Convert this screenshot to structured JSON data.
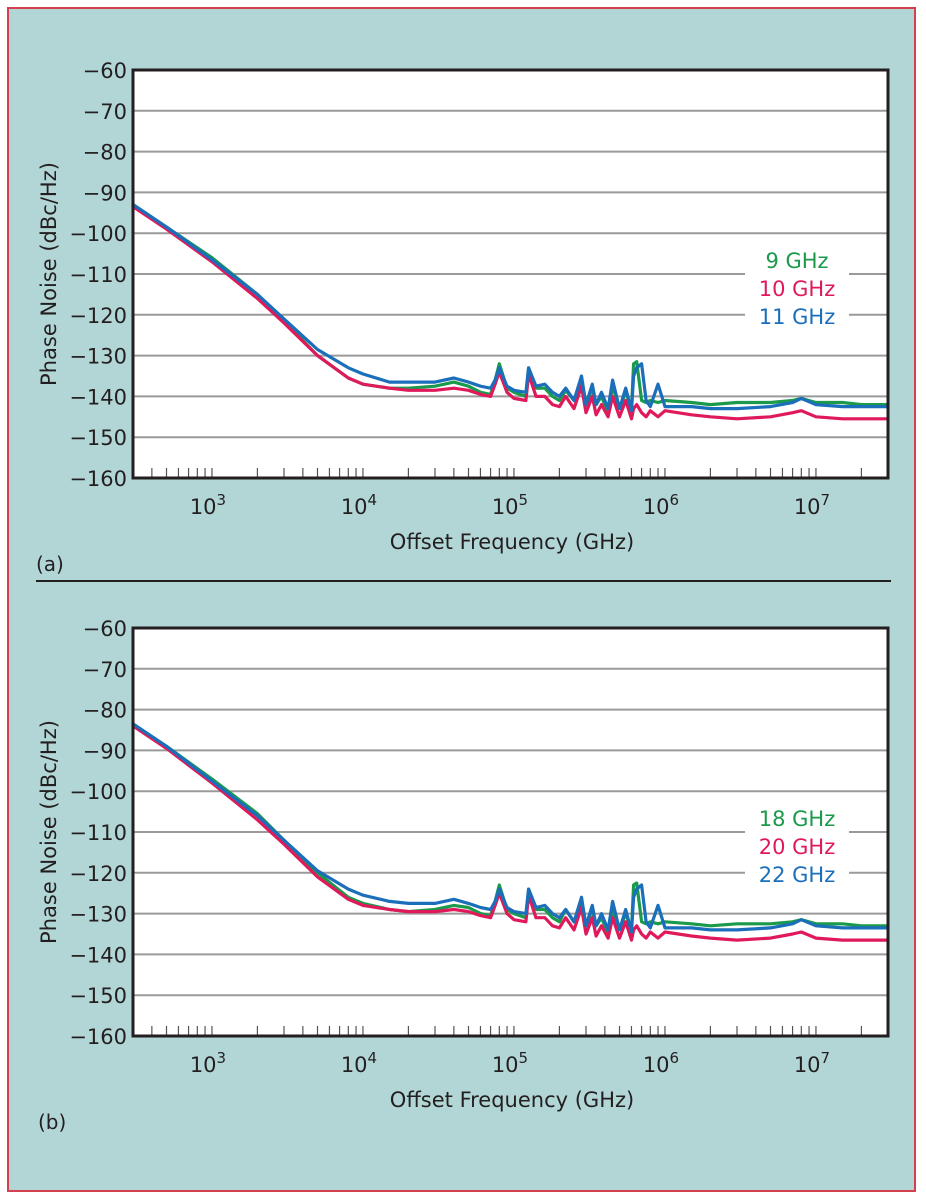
{
  "figure": {
    "colors": {
      "background": "#b2d6d6",
      "frame_border": "#d4404f",
      "plot_bg": "#ffffff",
      "grid": "#9a9a9a",
      "axis": "#231f20",
      "green": "#1a9a4a",
      "red": "#e0195a",
      "blue": "#1b6fba"
    }
  },
  "chart_data": [
    {
      "type": "line",
      "panel_label": "(a)",
      "title": "",
      "xlabel": "Offset Frequency (GHz)",
      "ylabel": "Phase Noise (dBc/Hz)",
      "xscale": "log",
      "xlim": [
        300,
        30000000
      ],
      "ylim": [
        -160,
        -60
      ],
      "yticks": [
        "−60",
        "−70",
        "−80",
        "−90",
        "−100",
        "−110",
        "−120",
        "−130",
        "−140",
        "−150",
        "−160"
      ],
      "ytick_values": [
        -60,
        -70,
        -80,
        -90,
        -100,
        -110,
        -120,
        -130,
        -140,
        -150,
        -160
      ],
      "xticks": [
        {
          "base": "10",
          "exp": "3",
          "value": 1000
        },
        {
          "base": "10",
          "exp": "4",
          "value": 10000
        },
        {
          "base": "10",
          "exp": "5",
          "value": 100000
        },
        {
          "base": "10",
          "exp": "6",
          "value": 1000000
        },
        {
          "base": "10",
          "exp": "7",
          "value": 10000000
        }
      ],
      "grid": true,
      "legend_position": "right",
      "series": [
        {
          "name": "9 GHz",
          "color": "green",
          "x": [
            300,
            500,
            1000,
            2000,
            3000,
            5000,
            8000,
            10000,
            15000,
            20000,
            30000,
            40000,
            50000,
            60000,
            70000,
            75000,
            80000,
            90000,
            100000,
            120000,
            125000,
            140000,
            160000,
            180000,
            200000,
            220000,
            250000,
            280000,
            300000,
            330000,
            350000,
            380000,
            420000,
            450000,
            500000,
            550000,
            600000,
            620000,
            650000,
            700000,
            750000,
            800000,
            900000,
            1000000,
            1500000,
            2000000,
            3000000,
            5000000,
            7000000,
            8000000,
            10000000,
            15000000,
            20000000,
            30000000
          ],
          "y": [
            -93,
            -98.5,
            -106,
            -115,
            -121.5,
            -130,
            -135.5,
            -137,
            -138,
            -138,
            -137.5,
            -136.5,
            -137.5,
            -139,
            -139.5,
            -136,
            -132,
            -138,
            -139,
            -140,
            -133,
            -138,
            -138,
            -140,
            -141,
            -138.5,
            -141,
            -136,
            -142,
            -138,
            -142,
            -140,
            -144,
            -137.5,
            -143,
            -139,
            -143,
            -132,
            -131.5,
            -141,
            -141.5,
            -141,
            -141.5,
            -141,
            -141.5,
            -142,
            -141.5,
            -141.5,
            -141,
            -140.5,
            -141.5,
            -141.5,
            -142,
            -142
          ]
        },
        {
          "name": "10 GHz",
          "color": "red",
          "x": [
            300,
            500,
            1000,
            2000,
            3000,
            5000,
            8000,
            10000,
            15000,
            20000,
            30000,
            40000,
            50000,
            60000,
            70000,
            75000,
            80000,
            90000,
            100000,
            120000,
            125000,
            140000,
            160000,
            180000,
            200000,
            220000,
            250000,
            280000,
            300000,
            330000,
            350000,
            380000,
            420000,
            450000,
            500000,
            550000,
            600000,
            620000,
            650000,
            700000,
            750000,
            800000,
            900000,
            1000000,
            1500000,
            2000000,
            3000000,
            5000000,
            7000000,
            8000000,
            10000000,
            15000000,
            20000000,
            30000000
          ],
          "y": [
            -93.5,
            -99,
            -107,
            -116,
            -122,
            -130,
            -135.5,
            -137,
            -138,
            -138.5,
            -138.5,
            -138,
            -138.5,
            -139.5,
            -140,
            -137,
            -134,
            -139,
            -140.5,
            -141,
            -134.5,
            -140,
            -140,
            -142,
            -142.5,
            -140,
            -143,
            -137.5,
            -144,
            -140,
            -144.5,
            -142,
            -145,
            -140,
            -145,
            -141,
            -145.5,
            -143,
            -142,
            -144,
            -145,
            -143.5,
            -145,
            -143.5,
            -144.5,
            -145,
            -145.5,
            -145,
            -144,
            -143.5,
            -145,
            -145.5,
            -145.5,
            -145.5
          ]
        },
        {
          "name": "11 GHz",
          "color": "blue",
          "x": [
            300,
            500,
            1000,
            2000,
            3000,
            5000,
            8000,
            10000,
            15000,
            20000,
            30000,
            40000,
            50000,
            60000,
            70000,
            75000,
            80000,
            90000,
            100000,
            120000,
            125000,
            140000,
            160000,
            180000,
            200000,
            220000,
            250000,
            280000,
            300000,
            330000,
            350000,
            380000,
            420000,
            450000,
            500000,
            550000,
            600000,
            620000,
            650000,
            700000,
            750000,
            800000,
            900000,
            1000000,
            1500000,
            2000000,
            3000000,
            5000000,
            7000000,
            8000000,
            10000000,
            15000000,
            20000000,
            30000000
          ],
          "y": [
            -93,
            -98.5,
            -106.5,
            -115,
            -121,
            -128.5,
            -133,
            -134.5,
            -136.5,
            -136.5,
            -136.5,
            -135.5,
            -136.5,
            -137.5,
            -138,
            -136,
            -133,
            -137.5,
            -138.5,
            -139,
            -133,
            -137.5,
            -137,
            -139,
            -140,
            -138,
            -141,
            -135,
            -142,
            -137,
            -142,
            -139,
            -143,
            -136,
            -143,
            -138,
            -143.5,
            -135,
            -133,
            -132,
            -141,
            -142.5,
            -137,
            -142.5,
            -142.5,
            -143,
            -143,
            -142.5,
            -141.5,
            -140.5,
            -142,
            -142.5,
            -142.5,
            -142.5
          ]
        }
      ]
    },
    {
      "type": "line",
      "panel_label": "(b)",
      "title": "",
      "xlabel": "Offset Frequency (GHz)",
      "ylabel": "Phase Noise (dBc/Hz)",
      "xscale": "log",
      "xlim": [
        300,
        30000000
      ],
      "ylim": [
        -160,
        -60
      ],
      "yticks": [
        "−60",
        "−70",
        "−80",
        "−90",
        "−100",
        "−110",
        "−120",
        "−130",
        "−140",
        "−150",
        "−160"
      ],
      "ytick_values": [
        -60,
        -70,
        -80,
        -90,
        -100,
        -110,
        -120,
        -130,
        -140,
        -150,
        -160
      ],
      "xticks": [
        {
          "base": "10",
          "exp": "3",
          "value": 1000
        },
        {
          "base": "10",
          "exp": "4",
          "value": 10000
        },
        {
          "base": "10",
          "exp": "5",
          "value": 100000
        },
        {
          "base": "10",
          "exp": "6",
          "value": 1000000
        },
        {
          "base": "10",
          "exp": "7",
          "value": 10000000
        }
      ],
      "grid": true,
      "legend_position": "right",
      "series": [
        {
          "name": "18 GHz",
          "color": "green",
          "x": [
            300,
            500,
            1000,
            2000,
            3000,
            5000,
            8000,
            10000,
            15000,
            20000,
            30000,
            40000,
            50000,
            60000,
            70000,
            75000,
            80000,
            90000,
            100000,
            120000,
            125000,
            140000,
            160000,
            180000,
            200000,
            220000,
            250000,
            280000,
            300000,
            330000,
            350000,
            380000,
            420000,
            450000,
            500000,
            550000,
            600000,
            620000,
            650000,
            700000,
            750000,
            800000,
            900000,
            1000000,
            1500000,
            2000000,
            3000000,
            5000000,
            7000000,
            8000000,
            10000000,
            15000000,
            20000000,
            30000000
          ],
          "y": [
            -83.5,
            -89,
            -97,
            -105.5,
            -112,
            -120,
            -126,
            -127.5,
            -129,
            -129.5,
            -129,
            -128,
            -128.5,
            -130,
            -130.5,
            -127,
            -123,
            -129,
            -130,
            -131,
            -124,
            -129,
            -129,
            -131,
            -132,
            -129,
            -132,
            -127,
            -133,
            -129,
            -133,
            -131,
            -135,
            -129,
            -134,
            -130,
            -134,
            -123,
            -122.5,
            -132,
            -132.5,
            -132,
            -132.5,
            -132,
            -132.5,
            -133,
            -132.5,
            -132.5,
            -132,
            -131.5,
            -132.5,
            -132.5,
            -133,
            -133
          ]
        },
        {
          "name": "20 GHz",
          "color": "red",
          "x": [
            300,
            500,
            1000,
            2000,
            3000,
            5000,
            8000,
            10000,
            15000,
            20000,
            30000,
            40000,
            50000,
            60000,
            70000,
            75000,
            80000,
            90000,
            100000,
            120000,
            125000,
            140000,
            160000,
            180000,
            200000,
            220000,
            250000,
            280000,
            300000,
            330000,
            350000,
            380000,
            420000,
            450000,
            500000,
            550000,
            600000,
            620000,
            650000,
            700000,
            750000,
            800000,
            900000,
            1000000,
            1500000,
            2000000,
            3000000,
            5000000,
            7000000,
            8000000,
            10000000,
            15000000,
            20000000,
            30000000
          ],
          "y": [
            -84,
            -89.5,
            -98,
            -107,
            -113,
            -121,
            -126.5,
            -128,
            -129,
            -129.5,
            -129.5,
            -129,
            -129.5,
            -130.5,
            -131,
            -128,
            -125,
            -130,
            -131.5,
            -132,
            -125.5,
            -131,
            -131,
            -133,
            -133.5,
            -131,
            -134,
            -128.5,
            -135,
            -131,
            -135.5,
            -133,
            -136,
            -131,
            -136,
            -132,
            -136.5,
            -134,
            -133,
            -135,
            -136,
            -134.5,
            -136,
            -134.5,
            -135.5,
            -136,
            -136.5,
            -136,
            -135,
            -134.5,
            -136,
            -136.5,
            -136.5,
            -136.5
          ]
        },
        {
          "name": "22 GHz",
          "color": "blue",
          "x": [
            300,
            500,
            1000,
            2000,
            3000,
            5000,
            8000,
            10000,
            15000,
            20000,
            30000,
            40000,
            50000,
            60000,
            70000,
            75000,
            80000,
            90000,
            100000,
            120000,
            125000,
            140000,
            160000,
            180000,
            200000,
            220000,
            250000,
            280000,
            300000,
            330000,
            350000,
            380000,
            420000,
            450000,
            500000,
            550000,
            600000,
            620000,
            650000,
            700000,
            750000,
            800000,
            900000,
            1000000,
            1500000,
            2000000,
            3000000,
            5000000,
            7000000,
            8000000,
            10000000,
            15000000,
            20000000,
            30000000
          ],
          "y": [
            -83.5,
            -89,
            -97.5,
            -106,
            -112,
            -119.5,
            -124,
            -125.5,
            -127,
            -127.5,
            -127.5,
            -126.5,
            -127.5,
            -128.5,
            -129,
            -127,
            -124,
            -128.5,
            -129.5,
            -130,
            -124,
            -128.5,
            -128,
            -130,
            -131,
            -129,
            -132,
            -126,
            -133,
            -128,
            -133,
            -130,
            -134,
            -127,
            -134,
            -129,
            -134.5,
            -126,
            -124,
            -123,
            -132,
            -133.5,
            -128,
            -133.5,
            -133.5,
            -134,
            -134,
            -133.5,
            -132.5,
            -131.5,
            -133,
            -133.5,
            -133.5,
            -133.5
          ]
        }
      ]
    }
  ]
}
